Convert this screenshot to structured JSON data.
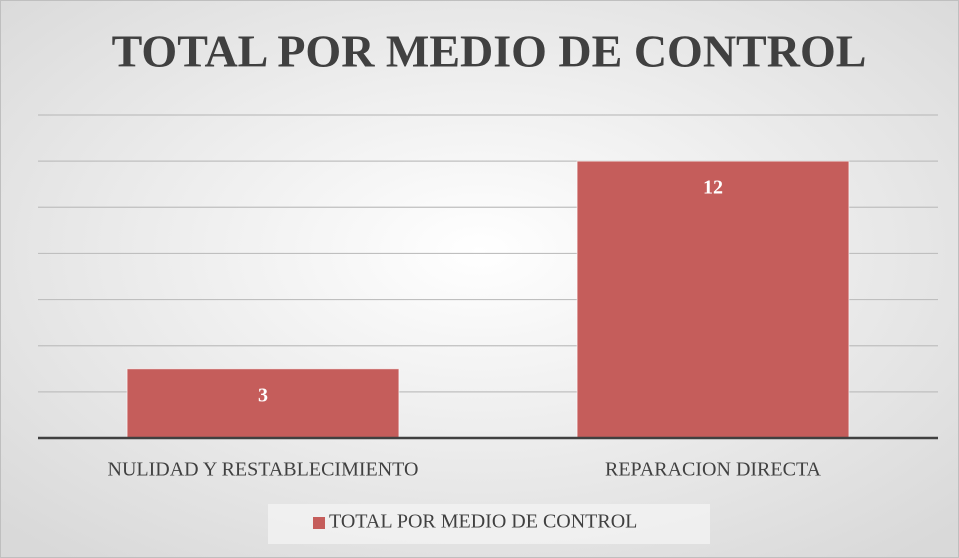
{
  "chart_data": {
    "type": "bar",
    "title": "TOTAL POR MEDIO DE CONTROL",
    "categories": [
      "NULIDAD Y RESTABLECIMIENTO",
      "REPARACION DIRECTA"
    ],
    "series": [
      {
        "name": "TOTAL POR MEDIO DE CONTROL",
        "color": "#c55d5b",
        "values": [
          3,
          12
        ]
      }
    ],
    "ylim": [
      0,
      14
    ],
    "yticks": [
      0,
      2,
      4,
      6,
      8,
      10,
      12,
      14
    ],
    "grid": true,
    "legend": "bottom"
  }
}
